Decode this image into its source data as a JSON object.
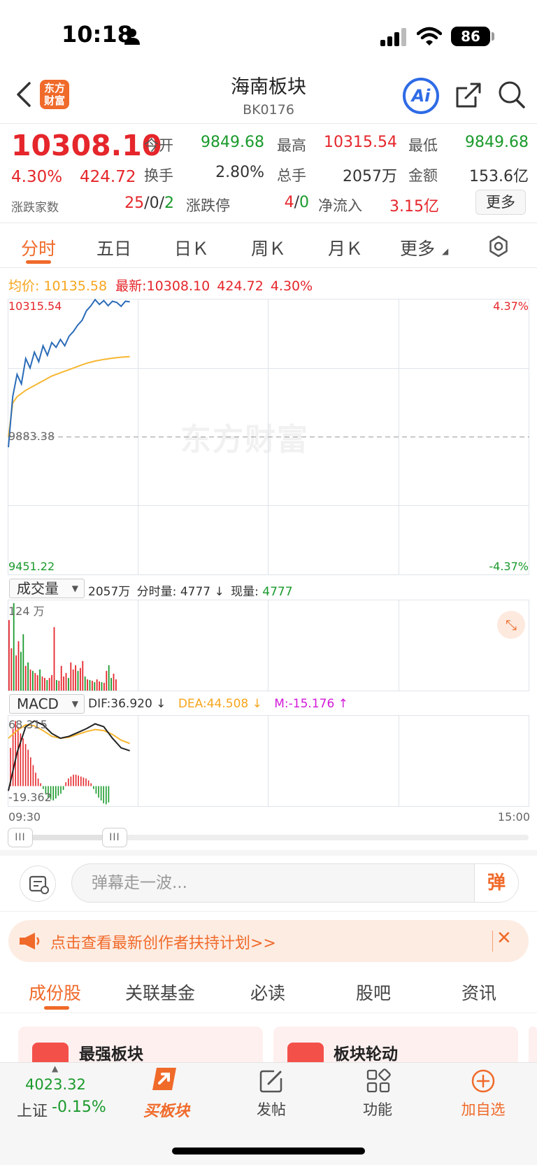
{
  "status_bar": {
    "time": "10:18",
    "battery": "86"
  },
  "nav": {
    "logo_line1": "东方",
    "logo_line2": "财富",
    "title": "海南板块",
    "code": "BK0176",
    "ai_label": "Ai"
  },
  "quote": {
    "price": "10308.10",
    "change_pct": "4.30%",
    "change": "424.72",
    "rise_fall_label": "涨跌家数",
    "rise_fall_up": "25",
    "rise_fall_flat": "0",
    "rise_fall_down": "2",
    "sep": "/",
    "open_label": "今开",
    "open": "9849.68",
    "high_label": "最高",
    "high": "10315.54",
    "low_label": "最低",
    "low": "9849.68",
    "turnover_label": "换手",
    "turnover": "2.80%",
    "volume_label": "总手",
    "volume": "2057万",
    "amount_label": "金额",
    "amount": "153.6亿",
    "limit_label": "涨跌停",
    "limit_up": "4",
    "limit_down": "0",
    "inflow_label": "净流入",
    "inflow": "3.15亿",
    "more_label": "更多"
  },
  "tabs": {
    "t1": "分时",
    "t2": "五日",
    "t3": "日Ｋ",
    "t4": "周Ｋ",
    "t5": "月Ｋ",
    "t6": "更多"
  },
  "chart": {
    "avg_label": "均价:",
    "avg_value": "10135.58",
    "latest_label": "最新:",
    "latest_value": "10308.10",
    "latest_change": "424.72",
    "latest_pct": "4.30%",
    "y_top": "10315.54",
    "y_mid": "9883.38",
    "y_bottom": "9451.22",
    "pct_top": "4.37%",
    "pct_bottom": "-4.37%",
    "watermark": "东方财富",
    "x_start": "09:30",
    "x_end": "15:00"
  },
  "volume_panel": {
    "selector": "成交量",
    "total": "2057万",
    "tick_label": "分时量:",
    "tick_value": "4777",
    "now_label": "现量:",
    "now_value": "4777",
    "arrow": "↓",
    "max_label": "124 万"
  },
  "macd_panel": {
    "selector": "MACD",
    "dif": "DIF:36.920 ↓",
    "dea": "DEA:44.508 ↓",
    "m": "M:-15.176 ↑",
    "y_top": "68.315",
    "y_bottom": "-19.362"
  },
  "danmaku": {
    "placeholder": "弹幕走一波...",
    "send": "弹"
  },
  "promo": {
    "text": "点击查看最新创作者扶持计划>>"
  },
  "subtabs": {
    "s1": "成份股",
    "s2": "关联基金",
    "s3": "必读",
    "s4": "股吧",
    "s5": "资讯"
  },
  "cards": {
    "c1": "最强板块",
    "c2": "板块轮动"
  },
  "bottom_bar": {
    "index_value": "4023.32",
    "index_name": "上证",
    "index_change": "-0.15%",
    "buy_label": "买板块",
    "post_label": "发帖",
    "func_label": "功能",
    "add_label": "加自选"
  },
  "chart_data": {
    "type": "line",
    "price_series": [
      [
        0,
        9851
      ],
      [
        2,
        10010
      ],
      [
        4,
        10080
      ],
      [
        6,
        10050
      ],
      [
        8,
        10130
      ],
      [
        10,
        10100
      ],
      [
        12,
        10150
      ],
      [
        14,
        10120
      ],
      [
        16,
        10170
      ],
      [
        18,
        10140
      ],
      [
        20,
        10180
      ],
      [
        22,
        10165
      ],
      [
        24,
        10190
      ],
      [
        26,
        10170
      ],
      [
        28,
        10200
      ],
      [
        30,
        10215
      ],
      [
        32,
        10235
      ],
      [
        34,
        10250
      ],
      [
        36,
        10280
      ],
      [
        38,
        10295
      ],
      [
        40,
        10315
      ],
      [
        42,
        10300
      ],
      [
        44,
        10312
      ],
      [
        46,
        10296
      ],
      [
        48,
        10310
      ],
      [
        50,
        10306
      ],
      [
        52,
        10294
      ],
      [
        54,
        10310
      ],
      [
        56,
        10308
      ]
    ],
    "avg_series": [
      [
        0,
        9883
      ],
      [
        2,
        9990
      ],
      [
        4,
        10010
      ],
      [
        8,
        10030
      ],
      [
        12,
        10045
      ],
      [
        16,
        10060
      ],
      [
        20,
        10075
      ],
      [
        24,
        10085
      ],
      [
        28,
        10095
      ],
      [
        32,
        10105
      ],
      [
        36,
        10115
      ],
      [
        40,
        10122
      ],
      [
        44,
        10127
      ],
      [
        48,
        10131
      ],
      [
        52,
        10134
      ],
      [
        56,
        10136
      ]
    ],
    "total_minutes": 240,
    "ylim": [
      9451.22,
      10315.54
    ],
    "volume": {
      "max": 124,
      "bars": [
        [
          100,
          "r"
        ],
        [
          60,
          "r"
        ],
        [
          124,
          "g"
        ],
        [
          50,
          "r"
        ],
        [
          70,
          "r"
        ],
        [
          55,
          "g"
        ],
        [
          80,
          "g"
        ],
        [
          35,
          "r"
        ],
        [
          40,
          "g"
        ],
        [
          30,
          "r"
        ],
        [
          28,
          "g"
        ],
        [
          25,
          "r"
        ],
        [
          22,
          "r"
        ],
        [
          30,
          "g"
        ],
        [
          20,
          "r"
        ],
        [
          18,
          "r"
        ],
        [
          15,
          "g"
        ],
        [
          18,
          "r"
        ],
        [
          22,
          "r"
        ],
        [
          90,
          "r"
        ],
        [
          15,
          "g"
        ],
        [
          14,
          "r"
        ],
        [
          35,
          "r"
        ],
        [
          20,
          "r"
        ],
        [
          25,
          "r"
        ],
        [
          18,
          "g"
        ],
        [
          40,
          "r"
        ],
        [
          30,
          "r"
        ],
        [
          36,
          "r"
        ],
        [
          28,
          "g"
        ],
        [
          32,
          "r"
        ],
        [
          42,
          "r"
        ],
        [
          20,
          "g"
        ],
        [
          16,
          "r"
        ],
        [
          15,
          "g"
        ],
        [
          14,
          "r"
        ],
        [
          12,
          "g"
        ],
        [
          16,
          "r"
        ],
        [
          13,
          "r"
        ],
        [
          12,
          "g"
        ],
        [
          11,
          "r"
        ],
        [
          28,
          "r"
        ],
        [
          36,
          "g"
        ],
        [
          18,
          "g"
        ],
        [
          24,
          "r"
        ],
        [
          16,
          "r"
        ]
      ]
    },
    "macd": {
      "ylim": [
        -19.362,
        68.315
      ],
      "dif": [
        [
          0,
          -5
        ],
        [
          4,
          35
        ],
        [
          8,
          62
        ],
        [
          12,
          68
        ],
        [
          16,
          64
        ],
        [
          20,
          55
        ],
        [
          24,
          50
        ],
        [
          28,
          52
        ],
        [
          32,
          56
        ],
        [
          36,
          60
        ],
        [
          40,
          65
        ],
        [
          44,
          62
        ],
        [
          48,
          50
        ],
        [
          52,
          40
        ],
        [
          56,
          37
        ]
      ],
      "dea": [
        [
          0,
          50
        ],
        [
          4,
          58
        ],
        [
          8,
          64
        ],
        [
          12,
          63
        ],
        [
          16,
          58
        ],
        [
          20,
          52
        ],
        [
          24,
          50
        ],
        [
          28,
          51
        ],
        [
          32,
          54
        ],
        [
          36,
          57
        ],
        [
          40,
          59
        ],
        [
          44,
          58
        ],
        [
          48,
          54
        ],
        [
          52,
          48
        ],
        [
          56,
          44.5
        ]
      ],
      "hist": [
        40,
        60,
        68,
        62,
        55,
        50,
        44,
        38,
        30,
        22,
        14,
        8,
        3,
        -3,
        -8,
        -12,
        -14,
        -15,
        -13,
        -10,
        -8,
        -4,
        4,
        8,
        10,
        12,
        12,
        11,
        10,
        9,
        8,
        6,
        3,
        -3,
        -8,
        -12,
        -15,
        -18,
        -19,
        -17
      ]
    }
  }
}
